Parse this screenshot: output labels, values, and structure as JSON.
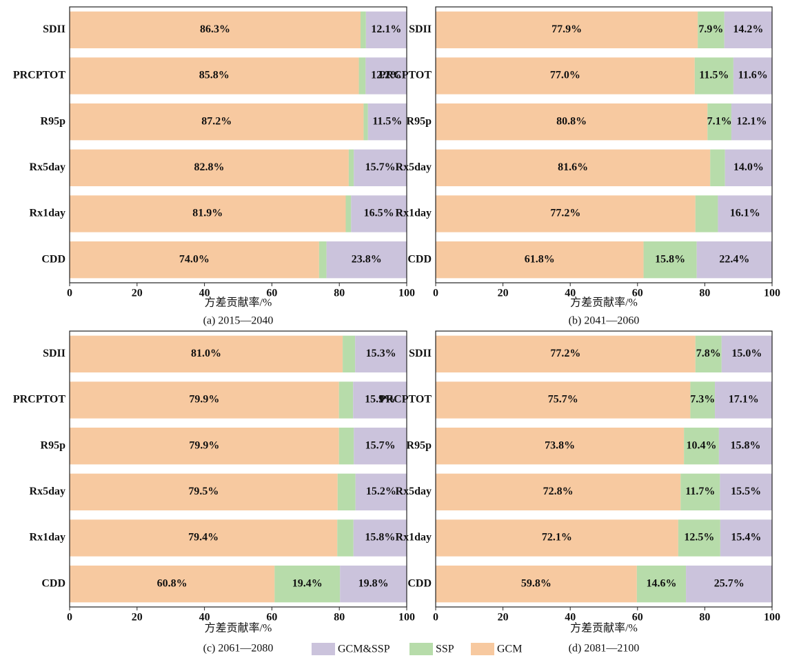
{
  "legend": [
    {
      "name": "GCM&SSP",
      "color": "#cbc3dc"
    },
    {
      "name": "SSP",
      "color": "#b7dcaa"
    },
    {
      "name": "GCM",
      "color": "#f7c9a0"
    }
  ],
  "chart_data": [
    {
      "type": "stacked-barh",
      "title": "(a) 2015—2040",
      "xlabel": "方差贡献率/%",
      "categories": [
        "SDII",
        "PRCPTOT",
        "R95p",
        "Rx5day",
        "Rx1day",
        "CDD"
      ],
      "xlim": [
        0,
        100
      ],
      "xticks": [
        0,
        20,
        40,
        60,
        80,
        100
      ],
      "series": [
        {
          "values": [
            12.1,
            12.2,
            11.5,
            15.7,
            16.5,
            23.8
          ],
          "value_labels": [
            "12.1%",
            "12.2%",
            "11.5%",
            "15.7%",
            "16.5%",
            "23.8%"
          ]
        },
        {
          "values": [
            1.6,
            2.0,
            1.3,
            1.5,
            1.6,
            2.2
          ],
          "value_labels": [
            null,
            null,
            null,
            null,
            null,
            null
          ]
        },
        {
          "values": [
            86.3,
            85.8,
            87.2,
            82.8,
            81.9,
            74.0
          ],
          "value_labels": [
            "86.3%",
            "85.8%",
            "87.2%",
            "82.8%",
            "81.9%",
            "74.0%"
          ]
        }
      ]
    },
    {
      "type": "stacked-barh",
      "title": "(b) 2041—2060",
      "xlabel": "方差贡献率/%",
      "categories": [
        "SDII",
        "PRCPTOT",
        "R95p",
        "Rx5day",
        "Rx1day",
        "CDD"
      ],
      "xlim": [
        0,
        100
      ],
      "xticks": [
        0,
        20,
        40,
        60,
        80,
        100
      ],
      "series": [
        {
          "values": [
            14.2,
            11.6,
            12.1,
            14.0,
            16.1,
            22.4
          ],
          "value_labels": [
            "14.2%",
            "11.6%",
            "12.1%",
            "14.0%",
            "16.1%",
            "22.4%"
          ]
        },
        {
          "values": [
            7.9,
            11.5,
            7.1,
            4.4,
            6.7,
            15.8
          ],
          "value_labels": [
            "7.9%",
            "11.5%",
            "7.1%",
            null,
            null,
            "15.8%"
          ]
        },
        {
          "values": [
            77.9,
            77.0,
            80.8,
            81.6,
            77.2,
            61.8
          ],
          "value_labels": [
            "77.9%",
            "77.0%",
            "80.8%",
            "81.6%",
            "77.2%",
            "61.8%"
          ]
        }
      ]
    },
    {
      "type": "stacked-barh",
      "title": "(c) 2061—2080",
      "xlabel": "方差贡献率/%",
      "categories": [
        "SDII",
        "PRCPTOT",
        "R95p",
        "Rx5day",
        "Rx1day",
        "CDD"
      ],
      "xlim": [
        0,
        100
      ],
      "xticks": [
        0,
        20,
        40,
        60,
        80,
        100
      ],
      "series": [
        {
          "values": [
            15.3,
            15.9,
            15.7,
            15.2,
            15.8,
            19.8
          ],
          "value_labels": [
            "15.3%",
            "15.9%",
            "15.7%",
            "15.2%",
            "15.8%",
            "19.8%"
          ]
        },
        {
          "values": [
            3.7,
            4.2,
            4.4,
            5.3,
            4.8,
            19.4
          ],
          "value_labels": [
            null,
            null,
            null,
            null,
            null,
            "19.4%"
          ]
        },
        {
          "values": [
            81.0,
            79.9,
            79.9,
            79.5,
            79.4,
            60.8
          ],
          "value_labels": [
            "81.0%",
            "79.9%",
            "79.9%",
            "79.5%",
            "79.4%",
            "60.8%"
          ]
        }
      ]
    },
    {
      "type": "stacked-barh",
      "title": "(d) 2081—2100",
      "xlabel": "方差贡献率/%",
      "categories": [
        "SDII",
        "PRCPTOT",
        "R95p",
        "Rx5day",
        "Rx1day",
        "CDD"
      ],
      "xlim": [
        0,
        100
      ],
      "xticks": [
        0,
        20,
        40,
        60,
        80,
        100
      ],
      "series": [
        {
          "values": [
            15.0,
            17.1,
            15.8,
            15.5,
            15.4,
            25.7
          ],
          "value_labels": [
            "15.0%",
            "17.1%",
            "15.8%",
            "15.5%",
            "15.4%",
            "25.7%"
          ]
        },
        {
          "values": [
            7.8,
            7.3,
            10.4,
            11.7,
            12.5,
            14.6
          ],
          "value_labels": [
            "7.8%",
            "7.3%",
            "10.4%",
            "11.7%",
            "12.5%",
            "14.6%"
          ]
        },
        {
          "values": [
            77.2,
            75.7,
            73.8,
            72.8,
            72.1,
            59.8
          ],
          "value_labels": [
            "77.2%",
            "75.7%",
            "73.8%",
            "72.8%",
            "72.1%",
            "59.8%"
          ]
        }
      ]
    }
  ]
}
